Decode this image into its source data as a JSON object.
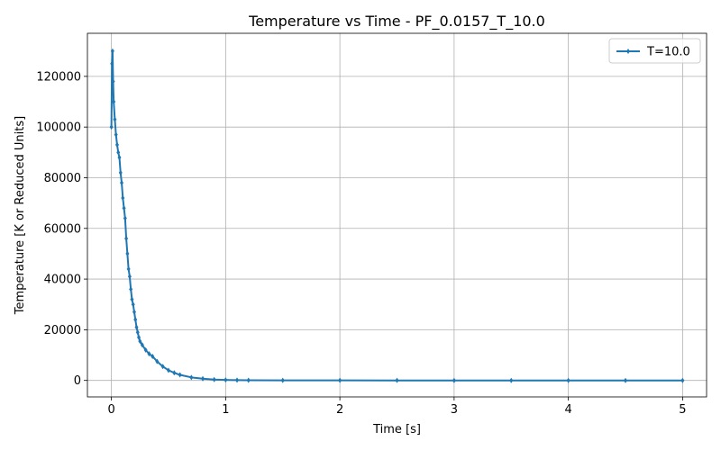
{
  "chart_data": {
    "type": "line",
    "title": "Temperature vs Time - PF_0.0157_T_10.0",
    "xlabel": "Time [s]",
    "ylabel": "Temperature [K or Reduced Units]",
    "xlim": [
      -0.21,
      5.21
    ],
    "ylim": [
      -6500,
      137000
    ],
    "xticks": [
      0,
      1,
      2,
      3,
      4,
      5
    ],
    "yticks": [
      0,
      20000,
      40000,
      60000,
      80000,
      100000,
      120000
    ],
    "grid": true,
    "legend_position": "top-right",
    "series": [
      {
        "name": "T=10.0",
        "color": "#1f77b4",
        "marker": "diamond",
        "x": [
          0,
          0.005,
          0.01,
          0.015,
          0.02,
          0.03,
          0.04,
          0.05,
          0.06,
          0.07,
          0.08,
          0.09,
          0.1,
          0.11,
          0.12,
          0.13,
          0.14,
          0.15,
          0.16,
          0.17,
          0.18,
          0.19,
          0.2,
          0.21,
          0.22,
          0.23,
          0.24,
          0.25,
          0.27,
          0.3,
          0.33,
          0.36,
          0.4,
          0.45,
          0.5,
          0.55,
          0.6,
          0.7,
          0.8,
          0.9,
          1.0,
          1.1,
          1.2,
          1.5,
          2.0,
          2.5,
          3.0,
          3.5,
          4.0,
          4.5,
          5.0
        ],
        "y": [
          100000,
          125000,
          130000,
          118000,
          110000,
          103000,
          97000,
          93000,
          90000,
          88000,
          82000,
          78000,
          72000,
          68000,
          64000,
          56000,
          50000,
          44000,
          41000,
          36000,
          32000,
          30000,
          27000,
          24000,
          21000,
          19000,
          17000,
          15500,
          14000,
          12000,
          10500,
          9500,
          7500,
          5500,
          4000,
          3000,
          2200,
          1200,
          700,
          350,
          200,
          100,
          50,
          20,
          10,
          5,
          3,
          2,
          1,
          1,
          0
        ]
      }
    ]
  }
}
